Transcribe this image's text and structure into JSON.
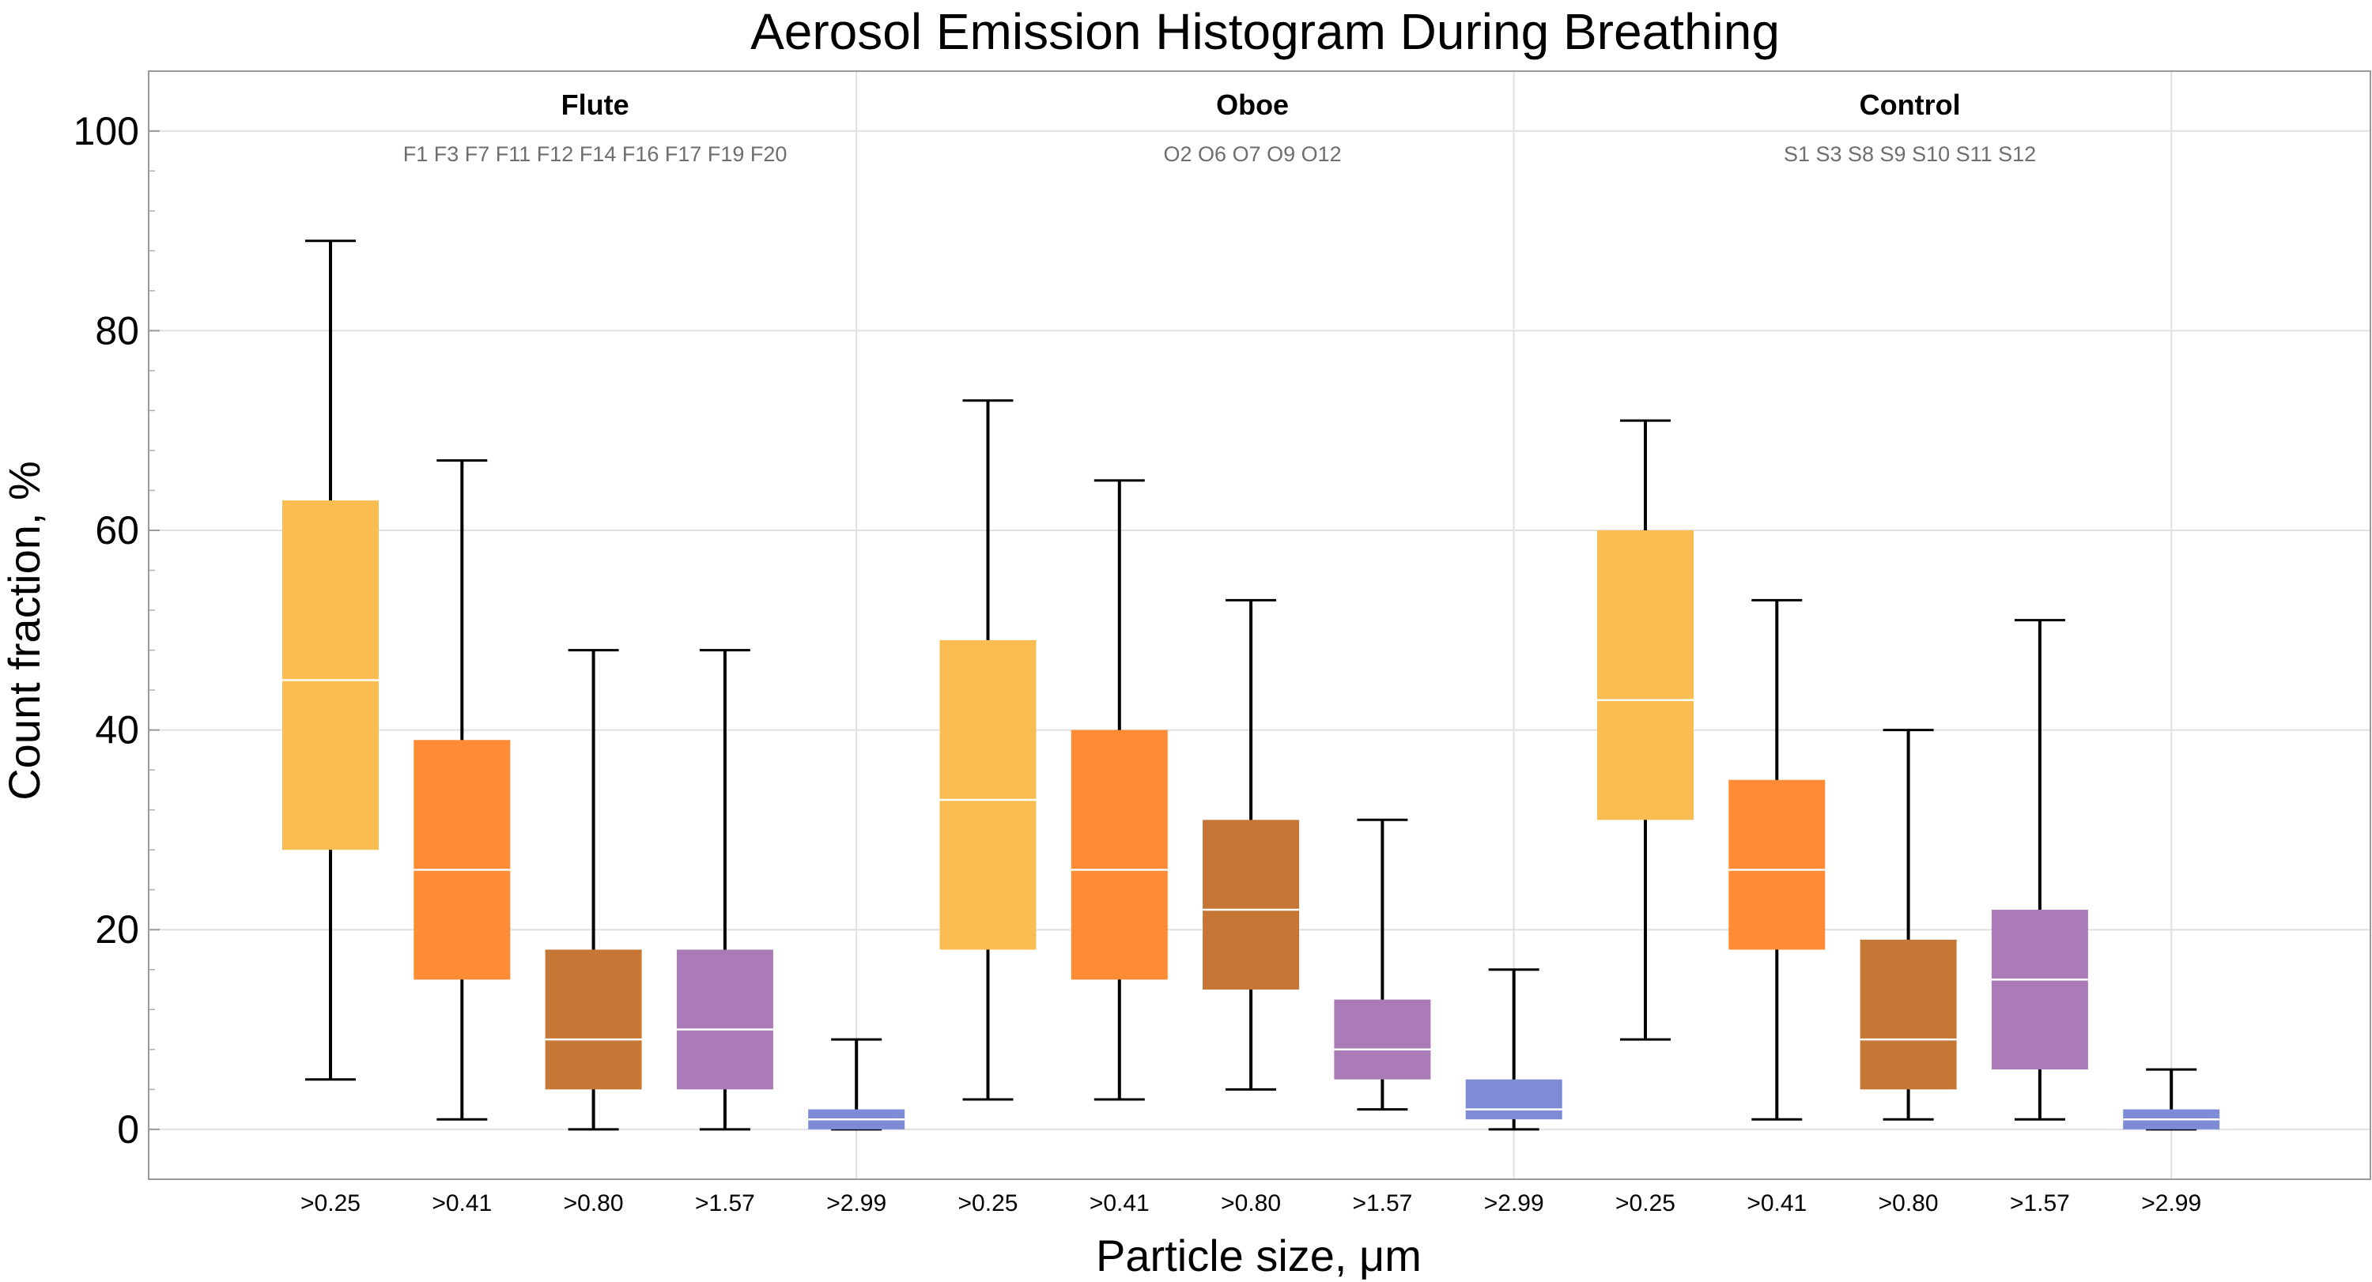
{
  "chart_data": {
    "type": "box",
    "title": "Aerosol Emission Histogram During Breathing",
    "xlabel": "Particle size,  μm",
    "ylabel": "Count  fraction,  %",
    "ylim": [
      -5,
      106
    ],
    "yticks": [
      0,
      20,
      40,
      60,
      80,
      100
    ],
    "grid": true,
    "colors": {
      ">0.25": "#F9BD52",
      ">0.41": "#FD8C35",
      ">0.80": "#C77735",
      ">1.57": "#AA7BB6",
      ">2.99": "#7E8CD5"
    },
    "groups": [
      {
        "name": "Flute",
        "subjects": "F1 F3 F7 F11 F12 F14 F16 F17 F19 F20",
        "boxes": [
          {
            "label": ">0.25",
            "min": 5,
            "q1": 28,
            "median": 45,
            "q3": 63,
            "max": 89
          },
          {
            "label": ">0.41",
            "min": 1,
            "q1": 15,
            "median": 26,
            "q3": 39,
            "max": 67
          },
          {
            "label": ">0.80",
            "min": 0,
            "q1": 4,
            "median": 9,
            "q3": 18,
            "max": 48
          },
          {
            "label": ">1.57",
            "min": 0,
            "q1": 4,
            "median": 10,
            "q3": 18,
            "max": 48
          },
          {
            "label": ">2.99",
            "min": 0,
            "q1": 0,
            "median": 1,
            "q3": 2,
            "max": 9
          }
        ]
      },
      {
        "name": "Oboe",
        "subjects": "O2 O6 O7 O9 O12",
        "boxes": [
          {
            "label": ">0.25",
            "min": 3,
            "q1": 18,
            "median": 33,
            "q3": 49,
            "max": 73
          },
          {
            "label": ">0.41",
            "min": 3,
            "q1": 15,
            "median": 26,
            "q3": 40,
            "max": 65
          },
          {
            "label": ">0.80",
            "min": 4,
            "q1": 14,
            "median": 22,
            "q3": 31,
            "max": 53
          },
          {
            "label": ">1.57",
            "min": 2,
            "q1": 5,
            "median": 8,
            "q3": 13,
            "max": 31
          },
          {
            "label": ">2.99",
            "min": 0,
            "q1": 1,
            "median": 2,
            "q3": 5,
            "max": 16
          }
        ]
      },
      {
        "name": "Control",
        "subjects": "S1 S3 S8 S9 S10 S11 S12",
        "boxes": [
          {
            "label": ">0.25",
            "min": 9,
            "q1": 31,
            "median": 43,
            "q3": 60,
            "max": 71
          },
          {
            "label": ">0.41",
            "min": 1,
            "q1": 18,
            "median": 26,
            "q3": 35,
            "max": 53
          },
          {
            "label": ">0.80",
            "min": 1,
            "q1": 4,
            "median": 9,
            "q3": 19,
            "max": 40
          },
          {
            "label": ">1.57",
            "min": 1,
            "q1": 6,
            "median": 15,
            "q3": 22,
            "max": 51
          },
          {
            "label": ">2.99",
            "min": 0,
            "q1": 0,
            "median": 1,
            "q3": 2,
            "max": 6
          }
        ]
      }
    ]
  }
}
